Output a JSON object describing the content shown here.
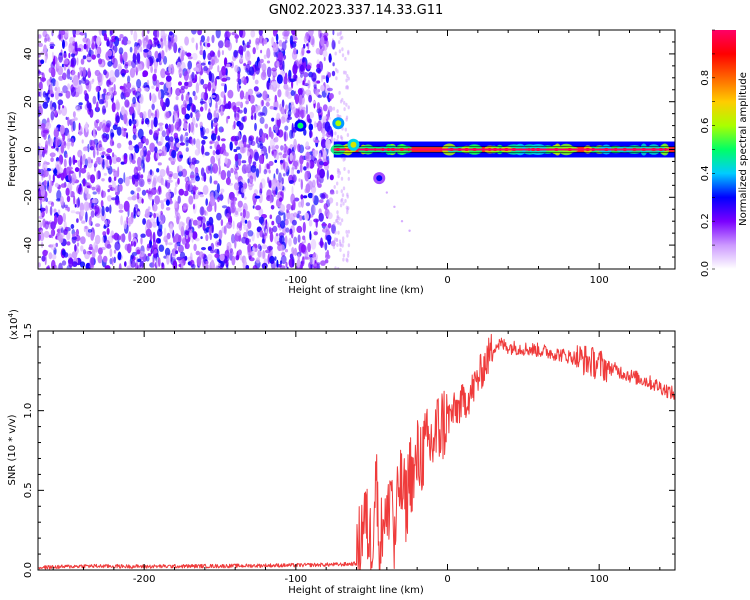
{
  "title": "GN02.2023.337.14.33.G11",
  "chart_data": [
    {
      "type": "heatmap",
      "xlabel": "Height of straight line (km)",
      "ylabel": "Frequency (Hz)",
      "xlim": [
        -270,
        150
      ],
      "ylim": [
        -50,
        50
      ],
      "x_ticks": [
        -200,
        -100,
        0,
        100
      ],
      "y_ticks": [
        -40,
        -20,
        0,
        20,
        40
      ],
      "colorbar": {
        "label": "Normalized spectral amplitude",
        "range": [
          0,
          1
        ],
        "ticks": [
          "0.0",
          "0.2",
          "0.4",
          "0.6",
          "0.8"
        ],
        "colors": [
          "#ffffff",
          "#cc99ff",
          "#7a00ff",
          "#0000ff",
          "#00ccff",
          "#00ff66",
          "#aaff00",
          "#ffcc00",
          "#ff6600",
          "#ff0000",
          "#ff0066"
        ]
      },
      "regions": [
        {
          "x_range": [
            -270,
            -75
          ],
          "y_range": [
            -50,
            50
          ],
          "amplitude": [
            0.05,
            0.3
          ]
        },
        {
          "x_range": [
            -75,
            150
          ],
          "y_range": [
            -1,
            1
          ],
          "amplitude": [
            0.6,
            1.0
          ]
        }
      ],
      "features": [
        {
          "x": -97,
          "y": 10,
          "amplitude": 0.4
        },
        {
          "x": -72,
          "y": 11,
          "amplitude": 0.5
        },
        {
          "x": -62,
          "y": 2,
          "amplitude": 0.55
        },
        {
          "x": -45,
          "y": -12,
          "amplitude": 0.2
        }
      ]
    },
    {
      "type": "line",
      "xlabel": "Height of straight line (km)",
      "ylabel": "SNR (10 * v/v)",
      "y_multiplier": "(x10^4)",
      "multiplier_base": "(x10",
      "multiplier_exp": "4",
      "multiplier_end": ")",
      "xlim": [
        -270,
        150
      ],
      "ylim": [
        0,
        15000
      ],
      "x_ticks": [
        -200,
        -100,
        0,
        100
      ],
      "y_ticks": [
        0,
        5000,
        10000,
        15000
      ],
      "y_tick_labels": [
        "0.0",
        "0.5",
        "1.0",
        "1.5"
      ],
      "color": "#ef3b3b",
      "series": [
        {
          "x": [
            -270,
            -240,
            -200,
            -150,
            -100,
            -70,
            -60,
            -55,
            -50,
            -47,
            -45,
            -42,
            -40,
            -37,
            -35,
            -32,
            -30,
            -27,
            -25,
            -22,
            -20,
            -15,
            -10,
            -5,
            0,
            5,
            10,
            15,
            20,
            25,
            30,
            35,
            40,
            50,
            60,
            70,
            80,
            90,
            100,
            110,
            120,
            130,
            140,
            150
          ],
          "y": [
            150,
            250,
            220,
            250,
            300,
            350,
            400,
            3500,
            1500,
            6500,
            500,
            4000,
            2500,
            6000,
            1000,
            5500,
            5000,
            4000,
            6500,
            5500,
            7000,
            7500,
            8000,
            9000,
            9500,
            10000,
            10500,
            11000,
            12000,
            13000,
            14000,
            14200,
            14000,
            13900,
            13800,
            13600,
            13400,
            13200,
            12900,
            12600,
            12200,
            11900,
            11500,
            11000
          ]
        }
      ]
    }
  ]
}
